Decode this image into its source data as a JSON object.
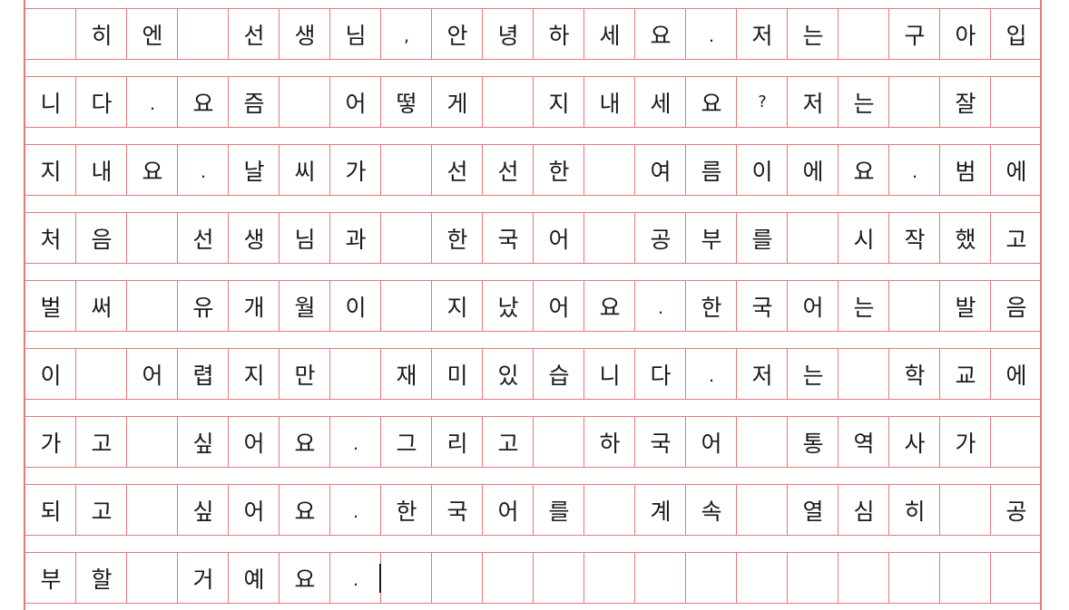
{
  "colors": {
    "grid_line": "#e6797b",
    "text": "#1a1a1a",
    "paper": "#ffffff"
  },
  "grid": {
    "columns": 20,
    "rows": [
      [
        "",
        "히",
        "엔",
        "",
        "선",
        "생",
        "님",
        ",",
        "안",
        "녕",
        "하",
        "세",
        "요",
        ".",
        "저",
        "는",
        "",
        "구",
        "아",
        "입"
      ],
      [
        "니",
        "다",
        ".",
        "요",
        "즘",
        "",
        "어",
        "떻",
        "게",
        "",
        "지",
        "내",
        "세",
        "요",
        "?",
        "저",
        "는",
        "",
        "잘",
        ""
      ],
      [
        "지",
        "내",
        "요",
        ".",
        "날",
        "씨",
        "가",
        "",
        "선",
        "선",
        "한",
        "",
        "여",
        "름",
        "이",
        "에",
        "요",
        ".",
        "범",
        "에"
      ],
      [
        "처",
        "음",
        "",
        "선",
        "생",
        "님",
        "과",
        "",
        "한",
        "국",
        "어",
        "",
        "공",
        "부",
        "를",
        "",
        "시",
        "작",
        "했",
        "고"
      ],
      [
        "벌",
        "써",
        "",
        "유",
        "개",
        "월",
        "이",
        "",
        "지",
        "났",
        "어",
        "요",
        ".",
        "한",
        "국",
        "어",
        "는",
        "",
        "발",
        "음"
      ],
      [
        "이",
        "",
        "어",
        "렵",
        "지",
        "만",
        "",
        "재",
        "미",
        "있",
        "습",
        "니",
        "다",
        ".",
        "저",
        "는",
        "",
        "학",
        "교",
        "에"
      ],
      [
        "가",
        "고",
        "",
        "싶",
        "어",
        "요",
        ".",
        "그",
        "리",
        "고",
        "",
        "하",
        "국",
        "어",
        "",
        "통",
        "역",
        "사",
        "가",
        ""
      ],
      [
        "되",
        "고",
        "",
        "싶",
        "어",
        "요",
        ".",
        "한",
        "국",
        "어",
        "를",
        "",
        "계",
        "속",
        "",
        "열",
        "심",
        "히",
        "",
        "공"
      ],
      [
        "부",
        "할",
        "",
        "거",
        "예",
        "요",
        ".",
        "",
        "",
        "",
        "",
        "",
        "",
        "",
        "",
        "",
        "",
        "",
        "",
        ""
      ]
    ]
  }
}
